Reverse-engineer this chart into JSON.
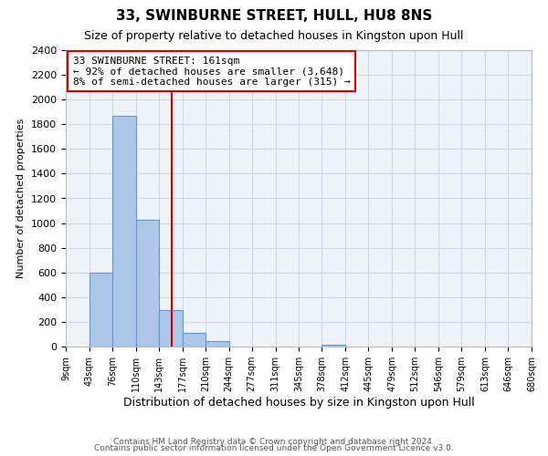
{
  "title": "33, SWINBURNE STREET, HULL, HU8 8NS",
  "subtitle": "Size of property relative to detached houses in Kingston upon Hull",
  "xlabel": "Distribution of detached houses by size in Kingston upon Hull",
  "ylabel": "Number of detached properties",
  "bin_edges": [
    9,
    43,
    76,
    110,
    143,
    177,
    210,
    244,
    277,
    311,
    345,
    378,
    412,
    445,
    479,
    512,
    546,
    579,
    613,
    646,
    680
  ],
  "bar_heights": [
    0,
    600,
    1870,
    1030,
    295,
    110,
    45,
    0,
    0,
    0,
    0,
    15,
    0,
    0,
    0,
    0,
    0,
    0,
    0,
    0
  ],
  "bar_color": "#aec6e8",
  "bar_edge_color": "#5b9bd5",
  "property_size": 161,
  "vline_color": "#cc0000",
  "annotation_text": "33 SWINBURNE STREET: 161sqm\n← 92% of detached houses are smaller (3,648)\n8% of semi-detached houses are larger (315) →",
  "annotation_box_edge_color": "#cc0000",
  "ylim": [
    0,
    2400
  ],
  "yticks": [
    0,
    200,
    400,
    600,
    800,
    1000,
    1200,
    1400,
    1600,
    1800,
    2000,
    2200,
    2400
  ],
  "tick_labels": [
    "9sqm",
    "43sqm",
    "76sqm",
    "110sqm",
    "143sqm",
    "177sqm",
    "210sqm",
    "244sqm",
    "277sqm",
    "311sqm",
    "345sqm",
    "378sqm",
    "412sqm",
    "445sqm",
    "479sqm",
    "512sqm",
    "546sqm",
    "579sqm",
    "613sqm",
    "646sqm",
    "680sqm"
  ],
  "footer_line1": "Contains HM Land Registry data © Crown copyright and database right 2024.",
  "footer_line2": "Contains public sector information licensed under the Open Government Licence v3.0.",
  "grid_color": "#d0d8e8",
  "background_color": "#eef2f9",
  "title_fontsize": 11,
  "subtitle_fontsize": 9,
  "ylabel_fontsize": 8,
  "xlabel_fontsize": 9,
  "ytick_fontsize": 8,
  "xtick_fontsize": 7,
  "footer_fontsize": 6.5,
  "annotation_fontsize": 8
}
